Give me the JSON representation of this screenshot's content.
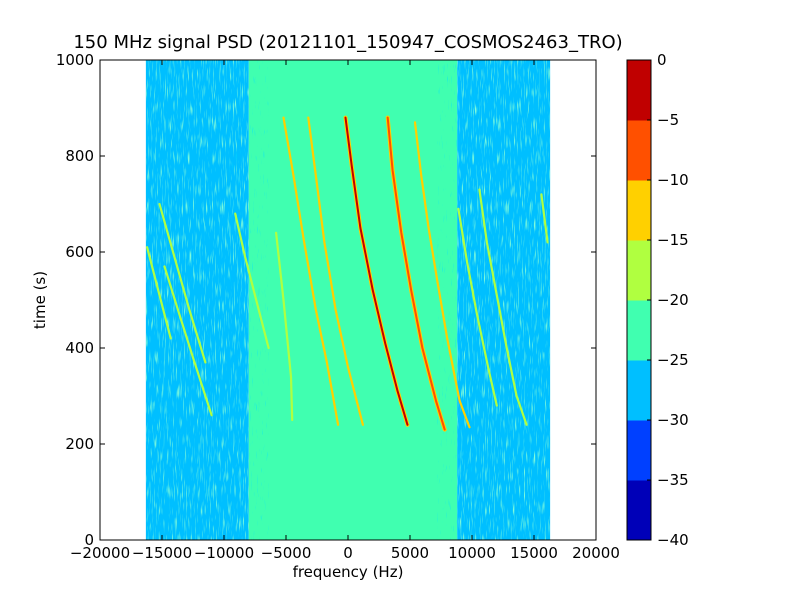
{
  "chart_data": {
    "type": "heatmap",
    "title": "150 MHz signal PSD (20121101_150947_COSMOS2463_TRO)",
    "xlabel": "frequency (Hz)",
    "ylabel": "time (s)",
    "xlim": [
      -20000,
      20000
    ],
    "ylim": [
      0,
      1000
    ],
    "xticks": [
      -20000,
      -15000,
      -10000,
      -5000,
      0,
      5000,
      10000,
      15000,
      20000
    ],
    "xtick_labels": [
      "−20000",
      "−15000",
      "−10000",
      "−5000",
      "0",
      "5000",
      "10000",
      "15000",
      "20000"
    ],
    "yticks": [
      0,
      200,
      400,
      600,
      800,
      1000
    ],
    "ytick_labels": [
      "0",
      "200",
      "400",
      "600",
      "800",
      "1000"
    ],
    "data_extent": {
      "x": [
        -16300,
        16300
      ],
      "y": [
        0,
        1000
      ]
    },
    "background": {
      "edge_band_level": -27.5,
      "center_band_level": -22.5,
      "center_band_x": [
        -8000,
        8800
      ]
    },
    "traces": [
      {
        "level": -17.5,
        "points": [
          [
            -16200,
            610
          ],
          [
            -15200,
            510
          ],
          [
            -14300,
            420
          ]
        ]
      },
      {
        "level": -17.5,
        "points": [
          [
            -14800,
            570
          ],
          [
            -13600,
            470
          ],
          [
            -12500,
            380
          ],
          [
            -11000,
            260
          ]
        ]
      },
      {
        "level": -17.5,
        "points": [
          [
            -15200,
            700
          ],
          [
            -14000,
            590
          ],
          [
            -12800,
            480
          ],
          [
            -11500,
            370
          ]
        ]
      },
      {
        "level": -17.5,
        "points": [
          [
            -9100,
            680
          ],
          [
            -8300,
            590
          ],
          [
            -7400,
            500
          ],
          [
            -6400,
            400
          ]
        ]
      },
      {
        "level": -17.5,
        "points": [
          [
            -5800,
            640
          ],
          [
            -5200,
            500
          ],
          [
            -4600,
            340
          ],
          [
            -4500,
            250
          ]
        ]
      },
      {
        "level": -12.5,
        "points": [
          [
            -5200,
            880
          ],
          [
            -4400,
            760
          ],
          [
            -3600,
            630
          ],
          [
            -2600,
            480
          ],
          [
            -1700,
            370
          ],
          [
            -800,
            240
          ]
        ]
      },
      {
        "level": -12.5,
        "points": [
          [
            -3200,
            880
          ],
          [
            -2600,
            760
          ],
          [
            -1900,
            620
          ],
          [
            -1000,
            480
          ],
          [
            0,
            360
          ],
          [
            1200,
            240
          ]
        ]
      },
      {
        "level": -2.5,
        "points": [
          [
            -200,
            880
          ],
          [
            300,
            780
          ],
          [
            1000,
            650
          ],
          [
            2000,
            520
          ],
          [
            3000,
            410
          ],
          [
            4000,
            310
          ],
          [
            4800,
            240
          ]
        ]
      },
      {
        "level": -7.5,
        "points": [
          [
            3200,
            880
          ],
          [
            3600,
            770
          ],
          [
            4300,
            640
          ],
          [
            5100,
            520
          ],
          [
            6000,
            400
          ],
          [
            7100,
            290
          ],
          [
            7800,
            230
          ]
        ]
      },
      {
        "level": -12.5,
        "points": [
          [
            5400,
            870
          ],
          [
            5900,
            760
          ],
          [
            6500,
            650
          ],
          [
            7200,
            540
          ],
          [
            8000,
            420
          ],
          [
            9000,
            290
          ],
          [
            9800,
            235
          ]
        ]
      },
      {
        "level": -17.5,
        "points": [
          [
            10600,
            730
          ],
          [
            11200,
            620
          ],
          [
            12000,
            510
          ],
          [
            12800,
            400
          ],
          [
            13600,
            300
          ],
          [
            14400,
            240
          ]
        ]
      },
      {
        "level": -17.5,
        "points": [
          [
            8900,
            690
          ],
          [
            9600,
            580
          ],
          [
            10400,
            470
          ],
          [
            11300,
            360
          ],
          [
            12000,
            280
          ]
        ]
      },
      {
        "level": -17.5,
        "points": [
          [
            15600,
            720
          ],
          [
            16100,
            620
          ]
        ]
      }
    ],
    "colorbar": {
      "levels": [
        -40,
        -35,
        -30,
        -25,
        -20,
        -15,
        -10,
        -5,
        0
      ],
      "tick_labels": [
        "−40",
        "−35",
        "−30",
        "−25",
        "−20",
        "−15",
        "−10",
        "−5",
        "0"
      ],
      "colors": [
        "#0000b8",
        "#0040ff",
        "#00bfff",
        "#40ffb0",
        "#b0ff40",
        "#ffd000",
        "#ff5000",
        "#c00000"
      ]
    }
  }
}
